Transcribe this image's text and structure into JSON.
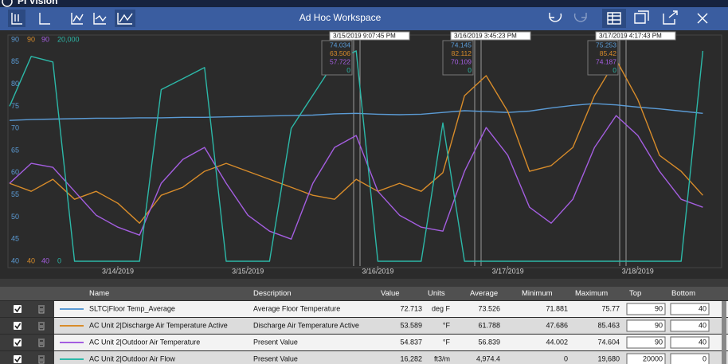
{
  "header": {
    "app_name": "PI Vision",
    "title": "Ad Hoc Workspace"
  },
  "chart_data": {
    "type": "line",
    "categories": [
      null,
      null,
      null,
      null,
      null,
      "3/14/2019",
      null,
      null,
      null,
      null,
      null,
      "3/15/2019",
      null,
      null,
      null,
      null,
      null,
      "3/16/2019",
      null,
      null,
      null,
      null,
      null,
      "3/17/2019",
      null,
      null,
      null,
      null,
      null,
      "3/18/2019",
      null,
      null,
      null
    ],
    "ylim": [
      40,
      90
    ],
    "yticks": [
      40,
      45,
      50,
      55,
      60,
      65,
      70,
      75,
      80,
      85,
      90
    ],
    "y2lim": [
      0,
      20000
    ],
    "y2ticks": [
      0,
      {
        "value": 20000,
        "label": "20,000"
      }
    ],
    "series": [
      {
        "name": "SLTC|Floor Temp_Average",
        "color": "#5b9bd5",
        "values": [
          71.8,
          72,
          72.1,
          72.2,
          72.3,
          72.3,
          72.4,
          72.4,
          72.5,
          72.5,
          72.6,
          72.7,
          72.8,
          72.9,
          73,
          73.3,
          73.4,
          73.2,
          73.1,
          73.2,
          73.6,
          74,
          73.8,
          73.6,
          73.9,
          74.6,
          75.2,
          75.6,
          75.3,
          74.8,
          74.4,
          73.9,
          73.4
        ]
      },
      {
        "name": "AC Unit 2|Discharge Air Temperature Active",
        "color": "#d88c2a",
        "ylim": [
          40,
          90
        ],
        "values": [
          57.6,
          55.8,
          58.5,
          54,
          55.8,
          53.1,
          48.6,
          54.9,
          56.7,
          60.3,
          62.1,
          60.3,
          58.5,
          56.7,
          54.9,
          54,
          58.5,
          55.8,
          57.6,
          55.8,
          60,
          77.4,
          81.9,
          73.8,
          60.3,
          61.6,
          65.7,
          77.4,
          85.5,
          76.5,
          63.9,
          60.3,
          54.9
        ]
      },
      {
        "name": "AC Unit 2|Outdoor Air Temperature",
        "color": "#a45ee0",
        "ylim": [
          40,
          90
        ],
        "values": [
          57.6,
          62.1,
          61.2,
          55.8,
          50.4,
          47.7,
          45.9,
          57.6,
          63,
          65.7,
          57.6,
          50.4,
          46.8,
          45,
          57.6,
          65.7,
          68.4,
          55.8,
          50.4,
          47.7,
          46.8,
          60.3,
          70.2,
          63.9,
          52.2,
          48.6,
          54,
          65.7,
          72.9,
          68.4,
          60.3,
          54,
          52.2
        ]
      },
      {
        "name": "AC Unit 2|Outdoor Air Flow",
        "color": "#2cb8a8",
        "axis": "y2",
        "values": [
          14000,
          18500,
          18000,
          0,
          0,
          0,
          0,
          15500,
          16500,
          17500,
          0,
          0,
          0,
          12000,
          15000,
          18000,
          19000,
          0,
          0,
          0,
          12500,
          0,
          0,
          0,
          0,
          0,
          0,
          0,
          0,
          0,
          0,
          0,
          19000
        ]
      }
    ],
    "cursors": [
      {
        "label": "3/15/2019 9:07:45 PM",
        "values": [
          74.034,
          63.506,
          57.722,
          0
        ]
      },
      {
        "label": "3/16/2019 3:45:23 PM",
        "values": [
          74.145,
          82.112,
          70.109,
          0
        ]
      },
      {
        "label": "3/17/2019 4:17:43 PM",
        "values": [
          75.253,
          85.42,
          74.187,
          0
        ]
      }
    ]
  },
  "table": {
    "headers": [
      "Name",
      "Description",
      "Value",
      "Units",
      "Average",
      "Minimum",
      "Maximum",
      "Top",
      "Bottom"
    ],
    "rows": [
      {
        "description": "Average Floor Temperature",
        "value": 72.713,
        "units": "deg F",
        "average": 73.526,
        "minimum": 71.881,
        "maximum": 75.77,
        "top": 90,
        "bottom": 40
      },
      {
        "description": "Discharge Air Temperature Active",
        "value": 53.589,
        "units": "°F",
        "average": 61.788,
        "minimum": 47.686,
        "maximum": 85.463,
        "top": 90,
        "bottom": 40
      },
      {
        "description": "Present Value",
        "value": 54.837,
        "units": "°F",
        "average": 56.839,
        "minimum": 44.002,
        "maximum": 74.604,
        "top": 90,
        "bottom": 40
      },
      {
        "description": "Present Value",
        "value": "16,282",
        "units": "ft3/m",
        "average": "4,974.4",
        "minimum": 0,
        "maximum": "19,680",
        "top": 20000,
        "bottom": 0
      }
    ]
  }
}
